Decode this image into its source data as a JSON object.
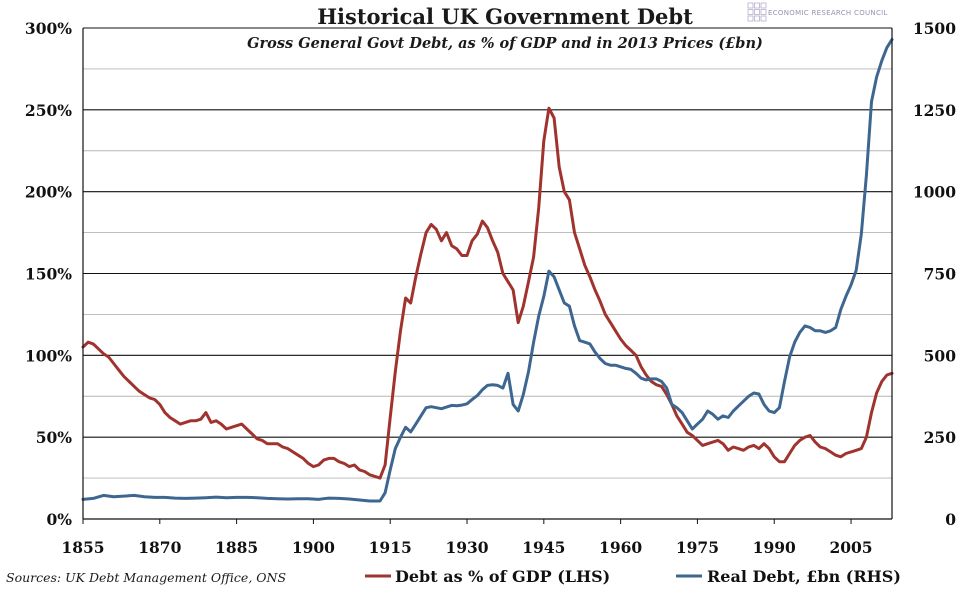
{
  "chart_data": {
    "type": "line",
    "title": "Historical UK Government Debt",
    "subtitle": "Gross General Govt Debt, as % of GDP and in 2013 Prices (£bn)",
    "source": "Sources: UK Debt Management Office, ONS",
    "logo_text": "ECONOMIC RESEARCH COUNCIL",
    "xlim": [
      1855,
      2013
    ],
    "x_ticks": [
      "1855",
      "1870",
      "1885",
      "1900",
      "1915",
      "1930",
      "1945",
      "1960",
      "1975",
      "1990",
      "2005"
    ],
    "y_left": {
      "lim": [
        0,
        300
      ],
      "ticks": [
        "0%",
        "50%",
        "100%",
        "150%",
        "200%",
        "250%",
        "300%"
      ]
    },
    "y_right": {
      "lim": [
        0,
        1500
      ],
      "ticks": [
        "0",
        "250",
        "500",
        "750",
        "1000",
        "1250",
        "1500"
      ]
    },
    "grid": true,
    "legend_position": "bottom",
    "series": [
      {
        "name": "Debt as % of GDP (LHS)",
        "axis": "left",
        "color": "#a0332e",
        "points": [
          [
            1855,
            105
          ],
          [
            1856,
            108
          ],
          [
            1857,
            107
          ],
          [
            1858,
            104
          ],
          [
            1859,
            101
          ],
          [
            1860,
            99
          ],
          [
            1861,
            95
          ],
          [
            1862,
            91
          ],
          [
            1863,
            87
          ],
          [
            1864,
            84
          ],
          [
            1865,
            81
          ],
          [
            1866,
            78
          ],
          [
            1867,
            76
          ],
          [
            1868,
            74
          ],
          [
            1869,
            73
          ],
          [
            1870,
            70
          ],
          [
            1871,
            65
          ],
          [
            1872,
            62
          ],
          [
            1873,
            60
          ],
          [
            1874,
            58
          ],
          [
            1875,
            59
          ],
          [
            1876,
            60
          ],
          [
            1877,
            60
          ],
          [
            1878,
            61
          ],
          [
            1879,
            65
          ],
          [
            1880,
            59
          ],
          [
            1881,
            60
          ],
          [
            1882,
            58
          ],
          [
            1883,
            55
          ],
          [
            1884,
            56
          ],
          [
            1885,
            57
          ],
          [
            1886,
            58
          ],
          [
            1887,
            55
          ],
          [
            1888,
            52
          ],
          [
            1889,
            49
          ],
          [
            1890,
            48
          ],
          [
            1891,
            46
          ],
          [
            1892,
            46
          ],
          [
            1893,
            46
          ],
          [
            1894,
            44
          ],
          [
            1895,
            43
          ],
          [
            1896,
            41
          ],
          [
            1897,
            39
          ],
          [
            1898,
            37
          ],
          [
            1899,
            34
          ],
          [
            1900,
            32
          ],
          [
            1901,
            33
          ],
          [
            1902,
            36
          ],
          [
            1903,
            37
          ],
          [
            1904,
            37
          ],
          [
            1905,
            35
          ],
          [
            1906,
            34
          ],
          [
            1907,
            32
          ],
          [
            1908,
            33
          ],
          [
            1909,
            30
          ],
          [
            1910,
            29
          ],
          [
            1911,
            27
          ],
          [
            1912,
            26
          ],
          [
            1913,
            25
          ],
          [
            1914,
            33
          ],
          [
            1915,
            62
          ],
          [
            1916,
            90
          ],
          [
            1917,
            115
          ],
          [
            1918,
            135
          ],
          [
            1919,
            132
          ],
          [
            1920,
            148
          ],
          [
            1921,
            162
          ],
          [
            1922,
            175
          ],
          [
            1923,
            180
          ],
          [
            1924,
            177
          ],
          [
            1925,
            170
          ],
          [
            1926,
            175
          ],
          [
            1927,
            167
          ],
          [
            1928,
            165
          ],
          [
            1929,
            161
          ],
          [
            1930,
            161
          ],
          [
            1931,
            170
          ],
          [
            1932,
            174
          ],
          [
            1933,
            182
          ],
          [
            1934,
            178
          ],
          [
            1935,
            170
          ],
          [
            1936,
            163
          ],
          [
            1937,
            150
          ],
          [
            1938,
            145
          ],
          [
            1939,
            140
          ],
          [
            1940,
            120
          ],
          [
            1941,
            130
          ],
          [
            1942,
            145
          ],
          [
            1943,
            160
          ],
          [
            1944,
            190
          ],
          [
            1945,
            231
          ],
          [
            1946,
            251
          ],
          [
            1947,
            245
          ],
          [
            1948,
            215
          ],
          [
            1949,
            200
          ],
          [
            1950,
            195
          ],
          [
            1951,
            175
          ],
          [
            1952,
            165
          ],
          [
            1953,
            155
          ],
          [
            1954,
            148
          ],
          [
            1955,
            140
          ],
          [
            1956,
            133
          ],
          [
            1957,
            125
          ],
          [
            1958,
            120
          ],
          [
            1959,
            115
          ],
          [
            1960,
            110
          ],
          [
            1961,
            106
          ],
          [
            1962,
            103
          ],
          [
            1963,
            100
          ],
          [
            1964,
            93
          ],
          [
            1965,
            88
          ],
          [
            1966,
            84
          ],
          [
            1967,
            82
          ],
          [
            1968,
            81
          ],
          [
            1969,
            76
          ],
          [
            1970,
            70
          ],
          [
            1971,
            63
          ],
          [
            1972,
            58
          ],
          [
            1973,
            53
          ],
          [
            1974,
            51
          ],
          [
            1975,
            48
          ],
          [
            1976,
            45
          ],
          [
            1977,
            46
          ],
          [
            1978,
            47
          ],
          [
            1979,
            48
          ],
          [
            1980,
            46
          ],
          [
            1981,
            42
          ],
          [
            1982,
            44
          ],
          [
            1983,
            43
          ],
          [
            1984,
            42
          ],
          [
            1985,
            44
          ],
          [
            1986,
            45
          ],
          [
            1987,
            43
          ],
          [
            1988,
            46
          ],
          [
            1989,
            43
          ],
          [
            1990,
            38
          ],
          [
            1991,
            35
          ],
          [
            1992,
            35
          ],
          [
            1993,
            40
          ],
          [
            1994,
            45
          ],
          [
            1995,
            48
          ],
          [
            1996,
            50
          ],
          [
            1997,
            51
          ],
          [
            1998,
            47
          ],
          [
            1999,
            44
          ],
          [
            2000,
            43
          ],
          [
            2001,
            41
          ],
          [
            2002,
            39
          ],
          [
            2003,
            38
          ],
          [
            2004,
            40
          ],
          [
            2005,
            41
          ],
          [
            2006,
            42
          ],
          [
            2007,
            43
          ],
          [
            2008,
            50
          ],
          [
            2009,
            65
          ],
          [
            2010,
            77
          ],
          [
            2011,
            84
          ],
          [
            2012,
            88
          ],
          [
            2013,
            89
          ]
        ]
      },
      {
        "name": "Real Debt, £bn (RHS)",
        "axis": "right",
        "color": "#3d6690",
        "points": [
          [
            1855,
            60
          ],
          [
            1857,
            63
          ],
          [
            1859,
            72
          ],
          [
            1861,
            68
          ],
          [
            1863,
            70
          ],
          [
            1865,
            72
          ],
          [
            1867,
            68
          ],
          [
            1869,
            66
          ],
          [
            1871,
            66
          ],
          [
            1873,
            64
          ],
          [
            1875,
            63
          ],
          [
            1877,
            64
          ],
          [
            1879,
            65
          ],
          [
            1881,
            67
          ],
          [
            1883,
            65
          ],
          [
            1885,
            66
          ],
          [
            1887,
            66
          ],
          [
            1889,
            65
          ],
          [
            1891,
            63
          ],
          [
            1893,
            62
          ],
          [
            1895,
            61
          ],
          [
            1897,
            62
          ],
          [
            1899,
            62
          ],
          [
            1901,
            60
          ],
          [
            1902,
            62
          ],
          [
            1903,
            64
          ],
          [
            1905,
            63
          ],
          [
            1907,
            61
          ],
          [
            1909,
            58
          ],
          [
            1911,
            55
          ],
          [
            1913,
            55
          ],
          [
            1914,
            80
          ],
          [
            1915,
            150
          ],
          [
            1916,
            215
          ],
          [
            1917,
            250
          ],
          [
            1918,
            280
          ],
          [
            1919,
            266
          ],
          [
            1920,
            290
          ],
          [
            1921,
            315
          ],
          [
            1922,
            340
          ],
          [
            1923,
            343
          ],
          [
            1924,
            340
          ],
          [
            1925,
            337
          ],
          [
            1926,
            342
          ],
          [
            1927,
            347
          ],
          [
            1928,
            346
          ],
          [
            1929,
            348
          ],
          [
            1930,
            352
          ],
          [
            1931,
            365
          ],
          [
            1932,
            377
          ],
          [
            1933,
            395
          ],
          [
            1934,
            408
          ],
          [
            1935,
            410
          ],
          [
            1936,
            408
          ],
          [
            1937,
            400
          ],
          [
            1938,
            445
          ],
          [
            1939,
            350
          ],
          [
            1940,
            330
          ],
          [
            1941,
            380
          ],
          [
            1942,
            450
          ],
          [
            1943,
            540
          ],
          [
            1944,
            620
          ],
          [
            1945,
            680
          ],
          [
            1946,
            757
          ],
          [
            1947,
            740
          ],
          [
            1948,
            700
          ],
          [
            1949,
            660
          ],
          [
            1950,
            650
          ],
          [
            1951,
            590
          ],
          [
            1952,
            545
          ],
          [
            1953,
            540
          ],
          [
            1954,
            535
          ],
          [
            1955,
            510
          ],
          [
            1956,
            490
          ],
          [
            1957,
            475
          ],
          [
            1958,
            470
          ],
          [
            1959,
            470
          ],
          [
            1960,
            465
          ],
          [
            1961,
            460
          ],
          [
            1962,
            457
          ],
          [
            1963,
            445
          ],
          [
            1964,
            430
          ],
          [
            1965,
            425
          ],
          [
            1966,
            428
          ],
          [
            1967,
            428
          ],
          [
            1968,
            420
          ],
          [
            1969,
            400
          ],
          [
            1970,
            350
          ],
          [
            1971,
            340
          ],
          [
            1972,
            325
          ],
          [
            1973,
            300
          ],
          [
            1974,
            275
          ],
          [
            1975,
            290
          ],
          [
            1976,
            305
          ],
          [
            1977,
            330
          ],
          [
            1978,
            320
          ],
          [
            1979,
            305
          ],
          [
            1980,
            315
          ],
          [
            1981,
            310
          ],
          [
            1982,
            330
          ],
          [
            1983,
            345
          ],
          [
            1984,
            360
          ],
          [
            1985,
            375
          ],
          [
            1986,
            385
          ],
          [
            1987,
            382
          ],
          [
            1988,
            350
          ],
          [
            1989,
            330
          ],
          [
            1990,
            325
          ],
          [
            1991,
            340
          ],
          [
            1992,
            420
          ],
          [
            1993,
            495
          ],
          [
            1994,
            540
          ],
          [
            1995,
            570
          ],
          [
            1996,
            590
          ],
          [
            1997,
            585
          ],
          [
            1998,
            575
          ],
          [
            1999,
            575
          ],
          [
            2000,
            570
          ],
          [
            2001,
            575
          ],
          [
            2002,
            585
          ],
          [
            2003,
            640
          ],
          [
            2004,
            680
          ],
          [
            2005,
            715
          ],
          [
            2006,
            760
          ],
          [
            2007,
            870
          ],
          [
            2008,
            1050
          ],
          [
            2009,
            1275
          ],
          [
            2010,
            1350
          ],
          [
            2011,
            1400
          ],
          [
            2012,
            1440
          ],
          [
            2013,
            1465
          ]
        ]
      }
    ]
  }
}
